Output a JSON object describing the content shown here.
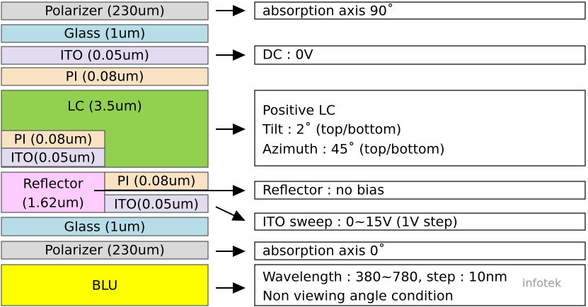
{
  "layers": [
    {
      "label": "Polarizer (230um)"
    },
    {
      "label": "Glass (1um)"
    },
    {
      "label": "ITO (0.05um)"
    },
    {
      "label": "PI (0.08um)"
    },
    {
      "label": "LC (3.5um)"
    },
    {
      "label": "PI (0.08um)"
    },
    {
      "label": "ITO(0.05um)"
    },
    {
      "label": "Reflector"
    },
    {
      "label": "(1.62um)"
    },
    {
      "label": "PI (0.08um)"
    },
    {
      "label": "ITO(0.05um)"
    },
    {
      "label": "Glass (1um)"
    },
    {
      "label": "Polarizer (230um)"
    },
    {
      "label": "BLU"
    }
  ],
  "notes": [
    {
      "lines": [
        "absorption axis 90˚"
      ]
    },
    {
      "lines": [
        "DC : 0V"
      ]
    },
    {
      "lines": [
        "Positive LC",
        "Tilt : 2˚ (top/bottom)",
        "Azimuth : 45˚ (top/bottom)"
      ]
    },
    {
      "lines": [
        "Reflector : no bias"
      ]
    },
    {
      "lines": [
        "ITO sweep : 0~15V (1V step)"
      ]
    },
    {
      "lines": [
        "absorption axis 0˚"
      ]
    },
    {
      "lines": [
        "Wavelength : 380~780, step : 10nm",
        "Non viewing angle condition"
      ]
    }
  ],
  "watermark": "infotek"
}
